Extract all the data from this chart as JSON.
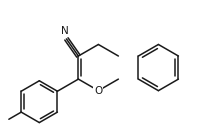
{
  "bg_color": "#ffffff",
  "line_color": "#1a1a1a",
  "line_width": 1.1,
  "font_size": 7.5,
  "figsize": [
    2.2,
    1.38
  ],
  "dpi": 100,
  "xlim": [
    0,
    10
  ],
  "ylim": [
    0,
    6.27
  ]
}
